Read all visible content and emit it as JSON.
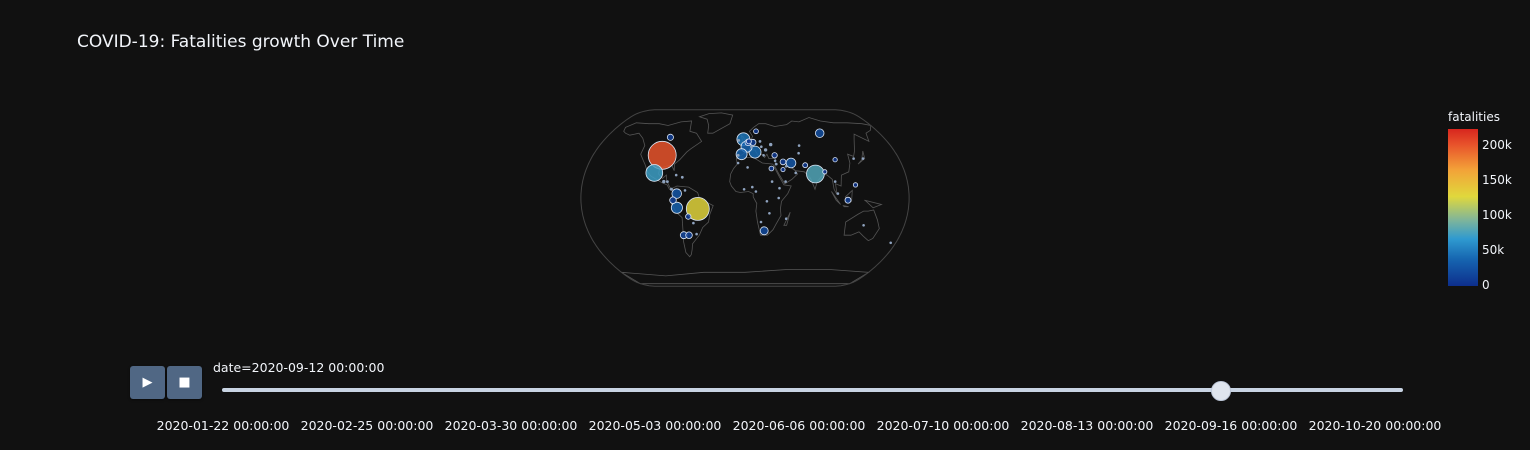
{
  "title": "COVID-19: Fatalities growth Over Time",
  "colorbar": {
    "title": "fatalities",
    "ticks": [
      {
        "label": "200k",
        "value": 200000
      },
      {
        "label": "150k",
        "value": 150000
      },
      {
        "label": "100k",
        "value": 100000
      },
      {
        "label": "50k",
        "value": 50000
      },
      {
        "label": "0",
        "value": 0
      }
    ],
    "max": 225000,
    "colors": [
      "#0d2e8c",
      "#1665b0",
      "#2f9ad0",
      "#7fb59a",
      "#e0d83c",
      "#f3a238",
      "#e8532b",
      "#d7261e"
    ]
  },
  "controls": {
    "play_icon": "play-icon",
    "stop_icon": "stop-icon"
  },
  "slider": {
    "current_label": "date=2020-09-12 00:00:00",
    "current_position": 0.845,
    "ticks": [
      "2020-01-22 00:00:00",
      "2020-02-25 00:00:00",
      "2020-03-30 00:00:00",
      "2020-05-03 00:00:00",
      "2020-06-06 00:00:00",
      "2020-07-10 00:00:00",
      "2020-08-13 00:00:00",
      "2020-09-16 00:00:00",
      "2020-10-20 00:00:00"
    ]
  },
  "map": {
    "projection": "natural-earth",
    "points": [
      {
        "lon": -98,
        "lat": 39,
        "fatalities": 193000
      },
      {
        "lon": -102,
        "lat": 23,
        "fatalities": 70000
      },
      {
        "lon": -52,
        "lat": -10,
        "fatalities": 131000
      },
      {
        "lon": 79,
        "lat": 22,
        "fatalities": 78000
      },
      {
        "lon": -2,
        "lat": 54,
        "fatalities": 41600
      },
      {
        "lon": 12,
        "lat": 42,
        "fatalities": 35600
      },
      {
        "lon": 2,
        "lat": 47,
        "fatalities": 30900
      },
      {
        "lon": -4,
        "lat": 40,
        "fatalities": 29700
      },
      {
        "lon": 53,
        "lat": 32,
        "fatalities": 23300
      },
      {
        "lon": -75,
        "lat": 4,
        "fatalities": 23000
      },
      {
        "lon": -75,
        "lat": -9,
        "fatalities": 30600
      },
      {
        "lon": 22,
        "lat": -30,
        "fatalities": 15700
      },
      {
        "lon": -65,
        "lat": -34,
        "fatalities": 11000
      },
      {
        "lon": -71,
        "lat": -34,
        "fatalities": 12000
      },
      {
        "lon": -79,
        "lat": -2,
        "fatalities": 11000
      },
      {
        "lon": 4,
        "lat": 51,
        "fatalities": 9900
      },
      {
        "lon": 43,
        "lat": 26,
        "fatalities": 4500
      },
      {
        "lon": 69,
        "lat": 30,
        "fatalities": 6300
      },
      {
        "lon": 35,
        "lat": 39,
        "fatalities": 7100
      },
      {
        "lon": 30,
        "lat": 27,
        "fatalities": 5600
      },
      {
        "lon": 113,
        "lat": -2,
        "fatalities": 8800
      },
      {
        "lon": -63,
        "lat": -17,
        "fatalities": 7300
      },
      {
        "lon": 100,
        "lat": 60,
        "fatalities": 18000
      },
      {
        "lon": 90,
        "lat": 24,
        "fatalities": 4500
      },
      {
        "lon": 44,
        "lat": 33,
        "fatalities": 8100
      },
      {
        "lon": 122,
        "lat": 12,
        "fatalities": 4700
      },
      {
        "lon": -81,
        "lat": 8,
        "fatalities": 2300
      },
      {
        "lon": -86,
        "lat": 15,
        "fatalities": 2000
      },
      {
        "lon": -90,
        "lat": 15,
        "fatalities": 2900
      },
      {
        "lon": 10,
        "lat": 51,
        "fatalities": 9400
      },
      {
        "lon": 5,
        "lat": 52,
        "fatalities": 6200
      },
      {
        "lon": 15,
        "lat": 62,
        "fatalities": 5800
      },
      {
        "lon": 32,
        "lat": 49,
        "fatalities": 3000
      },
      {
        "lon": 19,
        "lat": 52,
        "fatalities": 2000
      },
      {
        "lon": 105,
        "lat": 35,
        "fatalities": 4700
      },
      {
        "lon": 3,
        "lat": 28,
        "fatalities": 1600
      },
      {
        "lon": 8,
        "lat": 10,
        "fatalities": 1100
      },
      {
        "lon": -8,
        "lat": 32,
        "fatalities": 1500
      },
      {
        "lon": 38,
        "lat": 9,
        "fatalities": 1000
      },
      {
        "lon": 37,
        "lat": 0,
        "fatalities": 600
      },
      {
        "lon": -1,
        "lat": 8,
        "fatalities": 300
      },
      {
        "lon": 12,
        "lat": 6,
        "fatalities": 400
      },
      {
        "lon": 30,
        "lat": 15,
        "fatalities": 800
      },
      {
        "lon": 24,
        "lat": -3,
        "fatalities": 300
      },
      {
        "lon": 45,
        "lat": 15,
        "fatalities": 600
      },
      {
        "lon": 18,
        "lat": -22,
        "fatalities": 100
      },
      {
        "lon": 27,
        "lat": -14,
        "fatalities": 300
      },
      {
        "lon": 46,
        "lat": -19,
        "fatalities": 200
      },
      {
        "lon": 134,
        "lat": -25,
        "fatalities": 800
      },
      {
        "lon": -70,
        "lat": 19,
        "fatalities": 2000
      },
      {
        "lon": -77,
        "lat": 21,
        "fatalities": 100
      },
      {
        "lon": 67,
        "lat": 48,
        "fatalities": 1700
      },
      {
        "lon": 64,
        "lat": 41,
        "fatalities": 500
      },
      {
        "lon": 25,
        "lat": 44,
        "fatalities": 3000
      },
      {
        "lon": 20,
        "lat": 47,
        "fatalities": 700
      },
      {
        "lon": 22,
        "lat": 39,
        "fatalities": 300
      },
      {
        "lon": 8,
        "lat": 47,
        "fatalities": 1800
      },
      {
        "lon": -8,
        "lat": 39,
        "fatalities": 1900
      },
      {
        "lon": -8,
        "lat": 53,
        "fatalities": 1800
      },
      {
        "lon": 100,
        "lat": 15,
        "fatalities": 60
      },
      {
        "lon": 102,
        "lat": 4,
        "fatalities": 130
      },
      {
        "lon": 138,
        "lat": 36,
        "fatalities": 1400
      },
      {
        "lon": 127,
        "lat": 36,
        "fatalities": 350
      },
      {
        "lon": 174,
        "lat": -41,
        "fatalities": 25
      },
      {
        "lon": -56,
        "lat": -33,
        "fatalities": 45
      },
      {
        "lon": -58,
        "lat": -23,
        "fatalities": 300
      },
      {
        "lon": -66,
        "lat": 7,
        "fatalities": 500
      },
      {
        "lon": -97,
        "lat": 56,
        "fatalities": 9200
      },
      {
        "lon": 57,
        "lat": 23,
        "fatalities": 800
      },
      {
        "lon": 47,
        "lat": 29,
        "fatalities": 550
      },
      {
        "lon": 36,
        "lat": 31,
        "fatalities": 400
      },
      {
        "lon": 35,
        "lat": 34,
        "fatalities": 250
      }
    ]
  }
}
